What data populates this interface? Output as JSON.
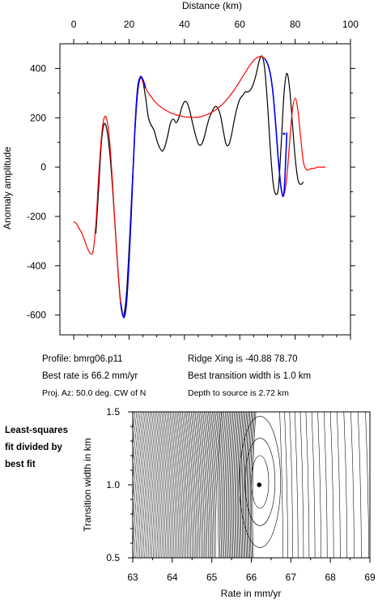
{
  "info": {
    "profile": "Profile: bmrg06.p11",
    "best_rate": "Best rate is 66.2 mm/yr",
    "proj_az": "Proj. Az: 50.0 deg. CW of N",
    "ridge_xing": "Ridge Xing is -40.88 78.70",
    "best_width": "Best transition width is 1.0 km",
    "depth": "Depth to source is   2.72 km"
  },
  "side_label": [
    "Least-squares",
    "fit divided by",
    "best fit"
  ],
  "colors": {
    "observed": "#000000",
    "model": "#ff0000",
    "fit_window": "#0000ff",
    "contour": "#000000"
  },
  "chart_data": [
    {
      "type": "line",
      "title": "",
      "xlabel": "Distance (km)",
      "ylabel": "Anomaly amplitude",
      "xlim": [
        -5,
        100
      ],
      "ylim": [
        -680,
        500
      ],
      "xticks": [
        0,
        20,
        40,
        60,
        80,
        100
      ],
      "xticks_minor_step": 5,
      "yticks": [
        -600,
        -400,
        -200,
        0,
        200,
        400
      ],
      "yticks_minor_step": 100,
      "x_axis_position": "top",
      "grid": false,
      "series": [
        {
          "color": "#000000",
          "x": [
            8,
            9,
            10,
            11,
            12,
            13,
            14,
            15,
            16,
            17,
            18,
            19,
            20,
            21,
            22,
            23,
            24,
            25,
            26,
            27,
            28,
            29,
            30,
            31,
            32,
            33,
            34,
            35,
            36,
            37,
            38,
            39,
            40,
            41,
            42,
            43,
            44,
            45,
            46,
            47,
            48,
            49,
            50,
            51,
            52,
            53,
            54,
            55,
            56,
            57,
            58,
            59,
            60,
            61,
            62,
            63,
            64,
            65,
            66,
            67,
            68,
            69,
            70,
            71,
            72,
            73,
            74,
            75,
            76,
            77,
            78,
            79,
            80,
            81,
            82,
            83
          ],
          "y": [
            -270,
            -90,
            100,
            175,
            150,
            60,
            -80,
            -250,
            -420,
            -560,
            -600,
            -520,
            -330,
            -100,
            120,
            290,
            360,
            345,
            280,
            200,
            170,
            150,
            110,
            80,
            65,
            85,
            130,
            180,
            195,
            180,
            200,
            240,
            265,
            260,
            225,
            175,
            130,
            95,
            90,
            115,
            160,
            200,
            225,
            245,
            240,
            210,
            150,
            95,
            90,
            130,
            190,
            240,
            275,
            290,
            305,
            305,
            315,
            340,
            380,
            430,
            450,
            400,
            260,
            80,
            -60,
            -110,
            -80,
            100,
            300,
            380,
            320,
            180,
            40,
            -50,
            -70,
            -60
          ]
        },
        {
          "color": "#ff0000",
          "x": [
            0,
            1,
            2,
            3,
            4,
            5,
            6,
            7,
            8,
            9,
            10,
            11,
            12,
            13,
            14,
            15,
            16,
            17,
            18,
            19,
            20,
            21,
            22,
            23,
            24,
            25,
            26,
            27,
            28,
            29,
            30,
            31,
            32,
            33,
            34,
            35,
            36,
            37,
            38,
            39,
            40,
            41,
            42,
            43,
            44,
            45,
            46,
            47,
            48,
            49,
            50,
            51,
            52,
            53,
            54,
            55,
            56,
            57,
            58,
            59,
            60,
            61,
            62,
            63,
            64,
            65,
            66,
            67,
            68,
            69,
            70,
            71,
            72,
            73,
            74,
            75,
            76,
            77,
            78,
            79,
            80,
            81,
            82,
            83,
            84,
            85,
            86,
            87,
            88,
            89,
            90,
            91
          ],
          "y": [
            -220,
            -230,
            -250,
            -270,
            -300,
            -330,
            -350,
            -340,
            -230,
            -40,
            120,
            200,
            190,
            100,
            -60,
            -250,
            -420,
            -550,
            -610,
            -560,
            -380,
            -130,
            130,
            310,
            365,
            345,
            320,
            300,
            285,
            270,
            258,
            248,
            240,
            232,
            226,
            220,
            216,
            212,
            209,
            206,
            204,
            203,
            202,
            202,
            202,
            203,
            205,
            208,
            212,
            217,
            223,
            230,
            238,
            248,
            258,
            270,
            283,
            298,
            313,
            330,
            348,
            366,
            384,
            402,
            418,
            432,
            442,
            448,
            448,
            440,
            420,
            380,
            300,
            170,
            20,
            -90,
            -110,
            -40,
            100,
            230,
            280,
            230,
            120,
            20,
            -10,
            -10,
            -5,
            -5,
            0,
            0,
            0,
            0
          ]
        },
        {
          "color": "#0000ff",
          "x": [
            17,
            18,
            19,
            20,
            21,
            22,
            23,
            24,
            25,
            26
          ],
          "y": [
            -550,
            -610,
            -560,
            -380,
            -130,
            130,
            310,
            365,
            355,
            320
          ]
        },
        {
          "color": "#0000ff",
          "x": [
            69,
            70,
            71,
            72,
            73,
            74,
            75,
            76,
            77
          ],
          "y": [
            440,
            420,
            380,
            300,
            170,
            20,
            -90,
            -100,
            140
          ]
        }
      ],
      "markers": [
        {
          "x": 76,
          "y": 135,
          "color": "#0000ff"
        }
      ]
    },
    {
      "type": "contour",
      "title": "",
      "xlabel": "Rate in mm/yr",
      "ylabel": "Transition width in km",
      "xlim": [
        63,
        69
      ],
      "ylim": [
        0.5,
        1.5
      ],
      "xticks": [
        63,
        64,
        65,
        66,
        67,
        68,
        69
      ],
      "xticks_minor_step": 0.5,
      "yticks": [
        0.5,
        1.0,
        1.5
      ],
      "yticks_minor_step": 0.1,
      "minimum": {
        "x": 66.2,
        "y": 1.0
      },
      "grid": false
    }
  ]
}
